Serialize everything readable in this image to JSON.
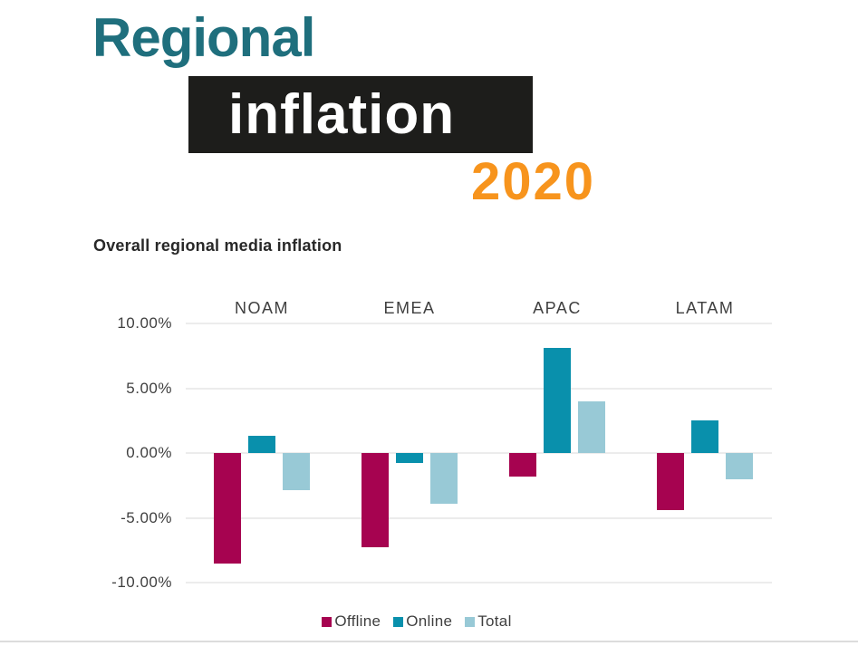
{
  "page": {
    "background": "#FFFFFF"
  },
  "header": {
    "title_line1": "Regional",
    "title_line2": "inflation",
    "year": "2020",
    "colors": {
      "title_teal": "#1F6F7D",
      "box_background": "#1D1D1B",
      "box_text": "#FFFFFF",
      "year_orange": "#F7941D"
    }
  },
  "chart_data": {
    "type": "bar",
    "title": "Overall regional media inflation",
    "categories": [
      "NOAM",
      "EMEA",
      "APAC",
      "LATAM"
    ],
    "series": [
      {
        "name": "Offline",
        "color": "#A60350",
        "values": [
          -8.5,
          -7.3,
          -1.8,
          -4.4
        ]
      },
      {
        "name": "Online",
        "color": "#0990AC",
        "values": [
          1.3,
          -0.8,
          8.1,
          2.5
        ]
      },
      {
        "name": "Total",
        "color": "#98C9D6",
        "values": [
          -2.9,
          -3.9,
          4.0,
          -2.0
        ]
      }
    ],
    "xlabel": "",
    "ylabel": "",
    "ylim": [
      -10,
      10
    ],
    "yticks": [
      10,
      5,
      0,
      -5,
      -10
    ],
    "ytick_labels": [
      "10.00%",
      "5.00%",
      "0.00%",
      "-5.00%",
      "-10.00%"
    ],
    "grid": true,
    "legend_position": "bottom"
  }
}
